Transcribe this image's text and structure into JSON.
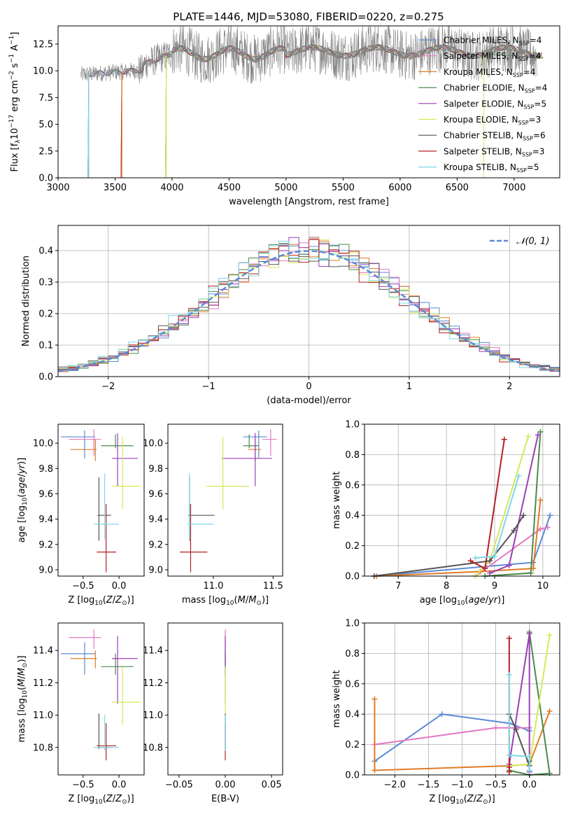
{
  "figure": {
    "title": "PLATE=1446, MJD=53080, FIBERID=0220, z=0.275"
  },
  "chart_data": [
    {
      "id": "spectrum",
      "type": "line",
      "xlabel": "wavelength [Angstrom, rest frame]",
      "ylabel": "Flux [f_λ 10^-17 erg cm^-2 s^-1 A^-1]",
      "xlim": [
        3000,
        7400
      ],
      "ylim": [
        0,
        14.2
      ],
      "xticks": [
        3000,
        3500,
        4000,
        4500,
        5000,
        5500,
        6000,
        6500,
        7000
      ],
      "yticks": [
        0.0,
        2.5,
        5.0,
        7.5,
        10.0,
        12.5
      ],
      "grid": false,
      "legend_position": "top-right",
      "observed_color": "#808080",
      "observed_range": [
        3200,
        7200
      ],
      "series": [
        {
          "name": "Chabrier MILES, N_SSP=4",
          "color": "#5b8bd6",
          "start": 3270
        },
        {
          "name": "Salpeter MILES, N_SSP=4",
          "color": "#e377c2",
          "start": 3270
        },
        {
          "name": "Kroupa MILES, N_SSP=4",
          "color": "#e07b26",
          "start": 3560
        },
        {
          "name": "Chabrier ELODIE, N_SSP=4",
          "color": "#4b8b4b",
          "start": 3950
        },
        {
          "name": "Salpeter ELODIE, N_SSP=5",
          "color": "#9a3fb5",
          "start": 3950
        },
        {
          "name": "Kroupa ELODIE, N_SSP=3",
          "color": "#d4ea5a",
          "start": 3950
        },
        {
          "name": "Chabrier STELIB, N_SSP=6",
          "color": "#555555",
          "start": 3270
        },
        {
          "name": "Salpeter STELIB, N_SSP=3",
          "color": "#b22222",
          "start": 3560
        },
        {
          "name": "Kroupa STELIB, N_SSP=5",
          "color": "#7fd8e8",
          "start": 3270
        }
      ]
    },
    {
      "id": "residuals",
      "type": "step",
      "xlabel": "(data-model)/error",
      "ylabel": "Normed distribution",
      "xlim": [
        -2.5,
        2.5
      ],
      "ylim": [
        0,
        0.48
      ],
      "xticks": [
        -2,
        -1,
        0,
        1,
        2
      ],
      "yticks": [
        0.0,
        0.1,
        0.2,
        0.3,
        0.4
      ],
      "grid": true,
      "legend_position": "top-right",
      "reference_curve": {
        "name": "𝒩(0, 1)",
        "color": "#5b8bd6"
      }
    },
    {
      "id": "age-vs-Z",
      "type": "errorbar",
      "xlabel": "Z [log10(Z/Z⊙)]",
      "ylabel": "age [log10(age/yr)]",
      "xlim": [
        -0.85,
        0.35
      ],
      "ylim": [
        8.95,
        10.15
      ],
      "xticks": [
        -0.5,
        0.0
      ],
      "yticks": [
        9.0,
        9.2,
        9.4,
        9.6,
        9.8,
        10.0
      ],
      "grid": false
    },
    {
      "id": "age-vs-mass",
      "type": "errorbar",
      "xlabel": "mass [log10(M/M⊙)]",
      "ylabel": "",
      "xlim": [
        10.62,
        11.58
      ],
      "ylim": [
        8.95,
        10.15
      ],
      "xticks": [
        11.0,
        11.5
      ],
      "yticks": [
        9.0,
        9.2,
        9.4,
        9.6,
        9.8,
        10.0
      ],
      "grid": false
    },
    {
      "id": "weight-vs-age",
      "type": "line",
      "xlabel": "age [log10(age/yr)]",
      "ylabel": "mass weight",
      "xlim": [
        6.3,
        10.35
      ],
      "ylim": [
        0,
        1.0
      ],
      "xticks": [
        7,
        8,
        9,
        10
      ],
      "yticks": [
        0.0,
        0.2,
        0.4,
        0.6,
        0.8,
        1.0
      ],
      "grid": true
    },
    {
      "id": "mass-vs-Z",
      "type": "errorbar",
      "xlabel": "Z [log10(Z/Z⊙)]",
      "ylabel": "mass [log10(M/M⊙)]",
      "xlim": [
        -0.85,
        0.35
      ],
      "ylim": [
        10.63,
        11.57
      ],
      "xticks": [
        -0.5,
        0.0
      ],
      "yticks": [
        10.8,
        11.0,
        11.2,
        11.4
      ],
      "grid": false
    },
    {
      "id": "mass-vs-ebv",
      "type": "errorbar",
      "xlabel": "E(B-V)",
      "ylabel": "",
      "xlim": [
        -0.062,
        0.062
      ],
      "ylim": [
        10.63,
        11.57
      ],
      "xticks": [
        -0.05,
        0.0,
        0.05
      ],
      "yticks": [
        10.8,
        11.0,
        11.2,
        11.4
      ],
      "grid": false
    },
    {
      "id": "weight-vs-Z",
      "type": "line",
      "xlabel": "Z [log10(Z/Z⊙)]",
      "ylabel": "mass weight",
      "xlim": [
        -2.45,
        0.45
      ],
      "ylim": [
        0,
        1.0
      ],
      "xticks": [
        -2.0,
        -1.5,
        -1.0,
        -0.5,
        0.0
      ],
      "yticks": [
        0.0,
        0.2,
        0.4,
        0.6,
        0.8,
        1.0
      ],
      "grid": true
    }
  ],
  "errorbars": {
    "models": [
      {
        "color": "#5b8bd6",
        "Z": -0.48,
        "Zerr": [
          0.33,
          0.15
        ],
        "age": 10.05,
        "ageErr": [
          0.17,
          0.05
        ],
        "mass": 11.38,
        "massErr": [
          0.13,
          0.07
        ]
      },
      {
        "color": "#e377c2",
        "Z": -0.35,
        "Zerr": [
          0.35,
          0.1
        ],
        "age": 10.03,
        "ageErr": [
          0.13,
          0.08
        ],
        "mass": 11.48,
        "massErr": [
          0.07,
          0.05
        ]
      },
      {
        "color": "#e07b26",
        "Z": -0.33,
        "Zerr": [
          0.35,
          0.02
        ],
        "age": 9.95,
        "ageErr": [
          0.09,
          0.08
        ],
        "mass": 11.35,
        "massErr": [
          0.06,
          0.05
        ]
      },
      {
        "color": "#4b8b4b",
        "Z": -0.05,
        "Zerr": [
          0.2,
          0.25
        ],
        "age": 9.98,
        "ageErr": [
          0.02,
          0.09
        ],
        "mass": 11.3,
        "massErr": [
          0.05,
          0.08
        ]
      },
      {
        "color": "#9a3fb5",
        "Z": -0.02,
        "Zerr": [
          0.08,
          0.28
        ],
        "age": 9.88,
        "ageErr": [
          0.22,
          0.2
        ],
        "mass": 11.35,
        "massErr": [
          0.28,
          0.14
        ]
      },
      {
        "color": "#d4ea5a",
        "Z": 0.05,
        "Zerr": [
          0.15,
          0.25
        ],
        "age": 9.66,
        "ageErr": [
          0.18,
          0.39
        ],
        "mass": 11.08,
        "massErr": [
          0.14,
          0.22
        ]
      },
      {
        "color": "#555555",
        "Z": -0.28,
        "Zerr": [
          0.02,
          0.17
        ],
        "age": 9.43,
        "ageErr": [
          0.2,
          0.3
        ],
        "mass": 10.8,
        "massErr": [
          0.01,
          0.21
        ]
      },
      {
        "color": "#b22222",
        "Z": -0.18,
        "Zerr": [
          0.13,
          0.14
        ],
        "age": 9.14,
        "ageErr": [
          0.16,
          0.38
        ],
        "mass": 10.81,
        "massErr": [
          0.09,
          0.14
        ]
      },
      {
        "color": "#7fd8e8",
        "Z": -0.2,
        "Zerr": [
          0.15,
          0.2
        ],
        "age": 9.36,
        "ageErr": [
          0.12,
          0.4
        ],
        "mass": 10.8,
        "massErr": [
          0.02,
          0.2
        ]
      }
    ]
  },
  "weights": {
    "by_age": [
      {
        "color": "#5b8bd6",
        "points": [
          [
            6.5,
            0.0
          ],
          [
            9.8,
            0.09
          ],
          [
            10.15,
            0.4
          ]
        ]
      },
      {
        "color": "#e377c2",
        "points": [
          [
            8.6,
            0.0
          ],
          [
            9.95,
            0.31
          ],
          [
            10.1,
            0.32
          ]
        ]
      },
      {
        "color": "#e07b26",
        "points": [
          [
            6.55,
            0.0
          ],
          [
            8.7,
            0.03
          ],
          [
            9.8,
            0.05
          ],
          [
            9.95,
            0.5
          ]
        ]
      },
      {
        "color": "#4b8b4b",
        "points": [
          [
            8.8,
            0.0
          ],
          [
            9.75,
            0.02
          ],
          [
            9.95,
            0.95
          ]
        ]
      },
      {
        "color": "#9a3fb5",
        "points": [
          [
            8.9,
            0.02
          ],
          [
            9.3,
            0.07
          ],
          [
            9.9,
            0.93
          ]
        ]
      },
      {
        "color": "#d4ea5a",
        "points": [
          [
            8.6,
            0.0
          ],
          [
            8.9,
            0.1
          ],
          [
            9.7,
            0.92
          ]
        ]
      },
      {
        "color": "#555555",
        "points": [
          [
            6.5,
            0.0
          ],
          [
            8.9,
            0.1
          ],
          [
            9.4,
            0.3
          ],
          [
            9.6,
            0.4
          ]
        ]
      },
      {
        "color": "#b22222",
        "points": [
          [
            8.5,
            0.1
          ],
          [
            8.8,
            0.05
          ],
          [
            9.2,
            0.9
          ]
        ]
      },
      {
        "color": "#7fd8e8",
        "points": [
          [
            8.6,
            0.12
          ],
          [
            9.0,
            0.13
          ],
          [
            9.5,
            0.66
          ]
        ]
      }
    ],
    "by_Z": [
      {
        "color": "#5b8bd6",
        "points": [
          [
            -2.3,
            0.09
          ],
          [
            -1.3,
            0.4
          ],
          [
            -0.3,
            0.34
          ],
          [
            0.0,
            0.29
          ]
        ]
      },
      {
        "color": "#e377c2",
        "points": [
          [
            -2.3,
            0.2
          ],
          [
            -0.5,
            0.31
          ],
          [
            0.0,
            0.31
          ]
        ]
      },
      {
        "color": "#e07b26",
        "points": [
          [
            -2.3,
            0.5
          ],
          [
            -2.3,
            0.03
          ],
          [
            -0.3,
            0.06
          ],
          [
            0.0,
            0.07
          ],
          [
            0.3,
            0.42
          ]
        ]
      },
      {
        "color": "#4b8b4b",
        "points": [
          [
            -0.3,
            0.03
          ],
          [
            0.0,
            0.0
          ],
          [
            0.3,
            0.01
          ],
          [
            0.0,
            0.94
          ]
        ]
      },
      {
        "color": "#9a3fb5",
        "points": [
          [
            -0.3,
            0.07
          ],
          [
            0.0,
            0.93
          ],
          [
            0.0,
            0.02
          ]
        ]
      },
      {
        "color": "#d4ea5a",
        "points": [
          [
            -0.3,
            0.06
          ],
          [
            0.0,
            0.07
          ],
          [
            0.3,
            0.92
          ]
        ]
      },
      {
        "color": "#555555",
        "points": [
          [
            -0.3,
            0.4
          ],
          [
            -0.2,
            0.3
          ],
          [
            0.0,
            0.06
          ],
          [
            0.0,
            0.09
          ]
        ]
      },
      {
        "color": "#b22222",
        "points": [
          [
            -0.3,
            0.9
          ],
          [
            -0.3,
            0.05
          ],
          [
            -0.3,
            0.02
          ]
        ]
      },
      {
        "color": "#7fd8e8",
        "points": [
          [
            -0.3,
            0.66
          ],
          [
            -0.3,
            0.13
          ],
          [
            0.0,
            0.12
          ],
          [
            0.0,
            0.03
          ]
        ]
      }
    ]
  },
  "colors": {
    "observed": "#808080",
    "grid": "#b0b0b0",
    "axis": "#000000"
  }
}
